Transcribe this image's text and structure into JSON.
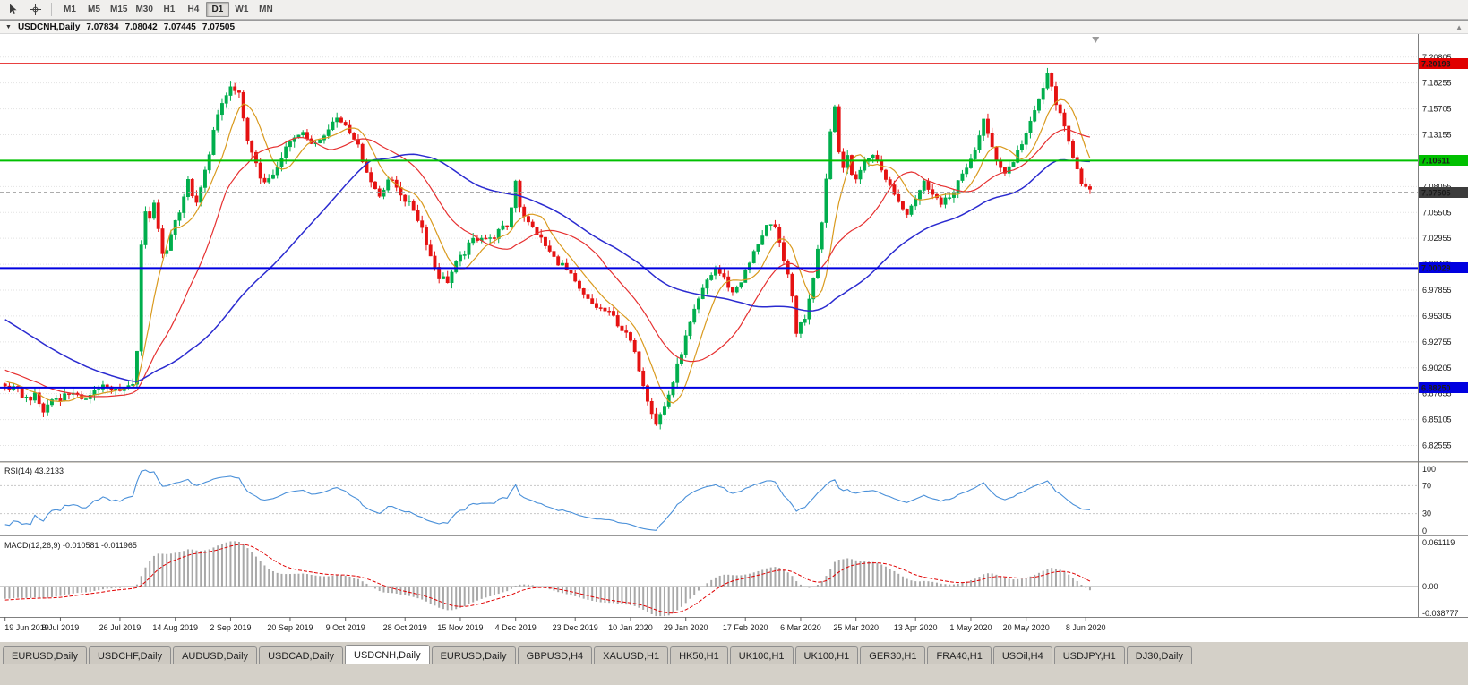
{
  "toolbar": {
    "tools": [
      {
        "name": "cursor-tool",
        "icon": "cursor-icon"
      },
      {
        "name": "crosshair-tool",
        "icon": "crosshair-icon"
      }
    ],
    "timeframes": [
      "M1",
      "M5",
      "M15",
      "M30",
      "H1",
      "H4",
      "D1",
      "W1",
      "MN"
    ],
    "active_timeframe": "D1"
  },
  "chart": {
    "title": "USDCNH,Daily",
    "ohlc": {
      "open": "7.07834",
      "high": "7.08042",
      "low": "7.07445",
      "close": "7.07505"
    }
  },
  "chart_data": {
    "type": "candlestick",
    "symbol": "USDCNH",
    "timeframe": "Daily",
    "candle_count": 256,
    "spacing_px": 4.75,
    "up_color": "#00AE4D",
    "down_color": "#E51212",
    "noise_amp": 0.0035,
    "wick_amp": 0.006,
    "pre_anchors": [
      [
        -60,
        7.045
      ],
      [
        -40,
        6.995
      ],
      [
        -20,
        6.915
      ]
    ],
    "price_anchors": [
      [
        0,
        6.884
      ],
      [
        3,
        6.879
      ],
      [
        5,
        6.872
      ],
      [
        7,
        6.874
      ],
      [
        9,
        6.859
      ],
      [
        11,
        6.871
      ],
      [
        13,
        6.873
      ],
      [
        16,
        6.879
      ],
      [
        18,
        6.868
      ],
      [
        20,
        6.878
      ],
      [
        23,
        6.884
      ],
      [
        25,
        6.879
      ],
      [
        27,
        6.882
      ],
      [
        29,
        6.884
      ],
      [
        30,
        6.888
      ],
      [
        31,
        6.92
      ],
      [
        32,
        7.02
      ],
      [
        33,
        7.055
      ],
      [
        34,
        7.048
      ],
      [
        35,
        7.062
      ],
      [
        36,
        7.04
      ],
      [
        37,
        7.012
      ],
      [
        38,
        7.018
      ],
      [
        39,
        7.035
      ],
      [
        41,
        7.058
      ],
      [
        43,
        7.085
      ],
      [
        45,
        7.062
      ],
      [
        47,
        7.095
      ],
      [
        49,
        7.135
      ],
      [
        51,
        7.162
      ],
      [
        53,
        7.178
      ],
      [
        55,
        7.17
      ],
      [
        56,
        7.145
      ],
      [
        58,
        7.112
      ],
      [
        60,
        7.09
      ],
      [
        62,
        7.085
      ],
      [
        64,
        7.098
      ],
      [
        66,
        7.118
      ],
      [
        68,
        7.13
      ],
      [
        70,
        7.137
      ],
      [
        72,
        7.12
      ],
      [
        74,
        7.128
      ],
      [
        76,
        7.14
      ],
      [
        78,
        7.148
      ],
      [
        80,
        7.142
      ],
      [
        82,
        7.13
      ],
      [
        84,
        7.108
      ],
      [
        86,
        7.085
      ],
      [
        88,
        7.072
      ],
      [
        90,
        7.088
      ],
      [
        92,
        7.08
      ],
      [
        94,
        7.068
      ],
      [
        96,
        7.058
      ],
      [
        98,
        7.04
      ],
      [
        100,
        7.012
      ],
      [
        102,
        6.992
      ],
      [
        104,
        6.988
      ],
      [
        106,
        7.004
      ],
      [
        108,
        7.016
      ],
      [
        110,
        7.028
      ],
      [
        112,
        7.032
      ],
      [
        114,
        7.028
      ],
      [
        116,
        7.036
      ],
      [
        118,
        7.042
      ],
      [
        119,
        7.06
      ],
      [
        120,
        7.088
      ],
      [
        121,
        7.062
      ],
      [
        123,
        7.044
      ],
      [
        125,
        7.035
      ],
      [
        127,
        7.022
      ],
      [
        129,
        7.01
      ],
      [
        131,
        7.003
      ],
      [
        133,
        6.992
      ],
      [
        135,
        6.978
      ],
      [
        137,
        6.968
      ],
      [
        139,
        6.962
      ],
      [
        141,
        6.958
      ],
      [
        143,
        6.952
      ],
      [
        145,
        6.94
      ],
      [
        147,
        6.928
      ],
      [
        149,
        6.902
      ],
      [
        151,
        6.872
      ],
      [
        153,
        6.848
      ],
      [
        155,
        6.864
      ],
      [
        157,
        6.888
      ],
      [
        159,
        6.918
      ],
      [
        161,
        6.945
      ],
      [
        163,
        6.968
      ],
      [
        165,
        6.988
      ],
      [
        167,
        7.0
      ],
      [
        169,
        6.99
      ],
      [
        171,
        6.976
      ],
      [
        173,
        6.988
      ],
      [
        175,
        7.005
      ],
      [
        177,
        7.025
      ],
      [
        179,
        7.042
      ],
      [
        181,
        7.038
      ],
      [
        183,
        7.01
      ],
      [
        185,
        6.972
      ],
      [
        186,
        6.938
      ],
      [
        187,
        6.945
      ],
      [
        188,
        6.952
      ],
      [
        189,
        6.972
      ],
      [
        190,
        6.992
      ],
      [
        191,
        7.022
      ],
      [
        192,
        7.045
      ],
      [
        193,
        7.09
      ],
      [
        194,
        7.135
      ],
      [
        195,
        7.16
      ],
      [
        196,
        7.118
      ],
      [
        197,
        7.1
      ],
      [
        198,
        7.108
      ],
      [
        199,
        7.092
      ],
      [
        200,
        7.09
      ],
      [
        202,
        7.104
      ],
      [
        204,
        7.114
      ],
      [
        206,
        7.096
      ],
      [
        208,
        7.082
      ],
      [
        210,
        7.066
      ],
      [
        212,
        7.056
      ],
      [
        214,
        7.07
      ],
      [
        216,
        7.084
      ],
      [
        218,
        7.076
      ],
      [
        220,
        7.062
      ],
      [
        222,
        7.07
      ],
      [
        224,
        7.086
      ],
      [
        226,
        7.096
      ],
      [
        228,
        7.118
      ],
      [
        230,
        7.146
      ],
      [
        231,
        7.13
      ],
      [
        233,
        7.108
      ],
      [
        235,
        7.094
      ],
      [
        237,
        7.106
      ],
      [
        239,
        7.124
      ],
      [
        241,
        7.142
      ],
      [
        243,
        7.166
      ],
      [
        245,
        7.19
      ],
      [
        246,
        7.178
      ],
      [
        248,
        7.15
      ],
      [
        250,
        7.124
      ],
      [
        252,
        7.1
      ],
      [
        253,
        7.086
      ],
      [
        254,
        7.079
      ],
      [
        255,
        7.075
      ]
    ],
    "y_axis": {
      "min": 6.811,
      "max": 7.229,
      "ticks": [
        "7.20805",
        "7.18255",
        "7.15705",
        "7.13155",
        "7.10605",
        "7.08055",
        "7.05505",
        "7.02955",
        "7.00405",
        "6.97855",
        "6.95305",
        "6.92755",
        "6.90205",
        "6.87655",
        "6.85105",
        "6.82555"
      ]
    },
    "x_labels": [
      {
        "idx": 0,
        "label": "19 Jun 2019"
      },
      {
        "idx": 13,
        "label": "8 Jul 2019"
      },
      {
        "idx": 27,
        "label": "26 Jul 2019"
      },
      {
        "idx": 40,
        "label": "14 Aug 2019"
      },
      {
        "idx": 53,
        "label": "2 Sep 2019"
      },
      {
        "idx": 67,
        "label": "20 Sep 2019"
      },
      {
        "idx": 80,
        "label": "9 Oct 2019"
      },
      {
        "idx": 94,
        "label": "28 Oct 2019"
      },
      {
        "idx": 107,
        "label": "15 Nov 2019"
      },
      {
        "idx": 120,
        "label": "4 Dec 2019"
      },
      {
        "idx": 134,
        "label": "23 Dec 2019"
      },
      {
        "idx": 147,
        "label": "10 Jan 2020"
      },
      {
        "idx": 160,
        "label": "29 Jan 2020"
      },
      {
        "idx": 174,
        "label": "17 Feb 2020"
      },
      {
        "idx": 187,
        "label": "6 Mar 2020"
      },
      {
        "idx": 200,
        "label": "25 Mar 2020"
      },
      {
        "idx": 214,
        "label": "13 Apr 2020"
      },
      {
        "idx": 227,
        "label": "1 May 2020"
      },
      {
        "idx": 240,
        "label": "20 May 2020"
      },
      {
        "idx": 254,
        "label": "8 Jun 2020"
      }
    ],
    "moving_averages": [
      {
        "name": "ma-fast",
        "period": 8,
        "color": "#D99A1E",
        "width": 1.2
      },
      {
        "name": "ma-mid",
        "period": 21,
        "color": "#E63030",
        "width": 1.2
      },
      {
        "name": "ma-slow",
        "period": 55,
        "color": "#2B2BD0",
        "width": 1.5
      }
    ],
    "hlines": [
      {
        "price": 7.20193,
        "label": "7.20193",
        "color": "#E00000",
        "width": 1
      },
      {
        "price": 7.10611,
        "label": "7.10611",
        "color": "#00C000",
        "width": 2
      },
      {
        "price": 7.00029,
        "label": "7.00029",
        "color": "#0000E0",
        "width": 2
      },
      {
        "price": 6.8825,
        "label": "6.88250",
        "color": "#0000E0",
        "width": 2
      }
    ],
    "current_price": {
      "value": 7.07505,
      "label": "7.07505",
      "color": "#3c3c3c"
    },
    "indicators": {
      "rsi": {
        "title": "RSI(14)",
        "value_text": "43.2133",
        "period": 14,
        "levels": [
          70,
          30
        ],
        "axis_labels": [
          "100",
          "70",
          "30",
          "0"
        ],
        "color": "#4A90D9"
      },
      "macd": {
        "title": "MACD(12,26,9)",
        "values_text": "-0.010581 -0.011965",
        "fast": 12,
        "slow": 26,
        "signal": 9,
        "axis_max": 0.061119,
        "axis_min": -0.038777,
        "axis_labels": [
          "0.061119",
          "0.00",
          "-0.038777"
        ],
        "hist_color": "#A8A8A8",
        "signal_color": "#E00000"
      }
    }
  },
  "tabs": {
    "items": [
      {
        "label": "EURUSD,Daily",
        "active": false
      },
      {
        "label": "USDCHF,Daily",
        "active": false
      },
      {
        "label": "AUDUSD,Daily",
        "active": false
      },
      {
        "label": "USDCAD,Daily",
        "active": false
      },
      {
        "label": "USDCNH,Daily",
        "active": true
      },
      {
        "label": "EURUSD,Daily",
        "active": false
      },
      {
        "label": "GBPUSD,H4",
        "active": false
      },
      {
        "label": "XAUUSD,H1",
        "active": false
      },
      {
        "label": "HK50,H1",
        "active": false
      },
      {
        "label": "UK100,H1",
        "active": false
      },
      {
        "label": "UK100,H1",
        "active": false
      },
      {
        "label": "GER30,H1",
        "active": false
      },
      {
        "label": "FRA40,H1",
        "active": false
      },
      {
        "label": "USOil,H4",
        "active": false
      },
      {
        "label": "USDJPY,H1",
        "active": false
      },
      {
        "label": "DJ30,Daily",
        "active": false
      }
    ]
  }
}
